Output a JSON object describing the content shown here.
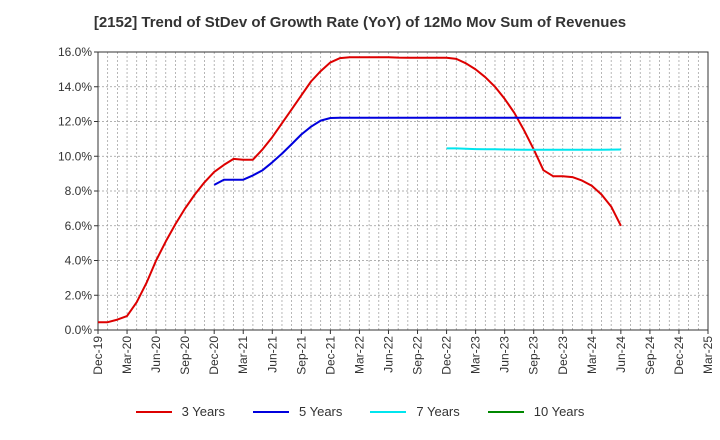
{
  "chart_data": {
    "type": "line",
    "title": "[2152]  Trend of StDev of Growth Rate (YoY) of 12Mo Mov Sum of Revenues",
    "xlabel": "",
    "ylabel": "",
    "ylim": [
      0,
      16
    ],
    "yticks": [
      "0.0%",
      "2.0%",
      "4.0%",
      "6.0%",
      "8.0%",
      "10.0%",
      "12.0%",
      "14.0%",
      "16.0%"
    ],
    "xticks": [
      "Dec-19",
      "Mar-20",
      "Jun-20",
      "Sep-20",
      "Dec-20",
      "Mar-21",
      "Jun-21",
      "Sep-21",
      "Dec-21",
      "Mar-22",
      "Jun-22",
      "Sep-22",
      "Dec-22",
      "Mar-23",
      "Jun-23",
      "Sep-23",
      "Dec-23",
      "Mar-24",
      "Jun-24",
      "Sep-24",
      "Dec-24",
      "Mar-25"
    ],
    "grid": true,
    "legend_position": "bottom",
    "series": [
      {
        "name": "3 Years",
        "color": "#dd0000",
        "start_index": 0,
        "values": [
          0.45,
          0.45,
          0.6,
          0.8,
          1.6,
          2.7,
          4.0,
          5.1,
          6.1,
          7.0,
          7.8,
          8.5,
          9.1,
          9.5,
          9.85,
          9.8,
          9.8,
          10.4,
          11.1,
          11.9,
          12.7,
          13.5,
          14.3,
          14.9,
          15.4,
          15.65,
          15.7,
          15.7,
          15.7,
          15.7,
          15.7,
          15.68,
          15.67,
          15.67,
          15.67,
          15.67,
          15.67,
          15.6,
          15.35,
          15.0,
          14.55,
          14.0,
          13.3,
          12.5,
          11.5,
          10.4,
          9.2,
          8.85,
          8.85,
          8.8,
          8.6,
          8.3,
          7.8,
          7.1,
          6.0
        ]
      },
      {
        "name": "5 Years",
        "color": "#0000dd",
        "start_index": 12,
        "values": [
          8.35,
          8.65,
          8.65,
          8.65,
          8.9,
          9.2,
          9.65,
          10.15,
          10.7,
          11.25,
          11.7,
          12.05,
          12.2,
          12.22,
          12.22,
          12.22,
          12.22,
          12.22,
          12.22,
          12.22,
          12.22,
          12.22,
          12.22,
          12.22,
          12.22,
          12.22,
          12.22,
          12.22,
          12.22,
          12.22,
          12.22,
          12.22,
          12.22,
          12.22,
          12.22,
          12.22,
          12.22,
          12.22,
          12.22,
          12.22,
          12.22,
          12.22,
          12.22
        ]
      },
      {
        "name": "7 Years",
        "color": "#00e5ee",
        "start_index": 36,
        "values": [
          10.45,
          10.45,
          10.43,
          10.41,
          10.4,
          10.4,
          10.39,
          10.38,
          10.37,
          10.37,
          10.37,
          10.37,
          10.37,
          10.37,
          10.37,
          10.37,
          10.37,
          10.38,
          10.39
        ]
      },
      {
        "name": "10 Years",
        "color": "#008800",
        "start_index": 0,
        "values": []
      }
    ]
  }
}
